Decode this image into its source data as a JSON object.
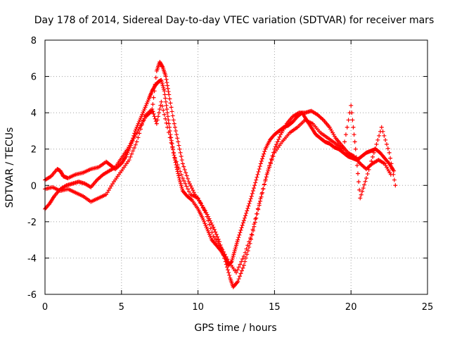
{
  "chart_data": {
    "type": "scatter",
    "title": "Day 178 of 2014, Sidereal Day-to-day VTEC variation (SDTVAR) for receiver mars",
    "xlabel": "GPS time / hours",
    "ylabel": "SDTVAR / TECUs",
    "xlim": [
      0,
      25
    ],
    "ylim": [
      -6,
      8
    ],
    "xticks": [
      0,
      5,
      10,
      15,
      20,
      25
    ],
    "yticks": [
      -6,
      -4,
      -2,
      0,
      2,
      4,
      6,
      8
    ],
    "grid": true,
    "legend": "none",
    "marker": "plus",
    "series": [
      {
        "name": "trace-1",
        "color": "#ff0000",
        "x": [
          0.0,
          0.4,
          0.8,
          1.0,
          1.2,
          1.5,
          2.0,
          2.5,
          3.0,
          3.5,
          4.0,
          4.3,
          4.6,
          5.0,
          5.3,
          5.6,
          5.9,
          6.2,
          6.5,
          6.8,
          7.0,
          7.2,
          7.4,
          7.6,
          7.8,
          8.0,
          8.2,
          8.4,
          8.6,
          8.8,
          9.0,
          9.3,
          9.6,
          10.0,
          10.3,
          10.6,
          10.9,
          11.2,
          11.5,
          11.8,
          12.0,
          12.2,
          12.4,
          12.6,
          12.9,
          13.2,
          13.5,
          13.8,
          14.1,
          14.4,
          14.7,
          15.0,
          15.3,
          15.6,
          15.9,
          16.2,
          16.5,
          16.8,
          17.1,
          17.4,
          17.7,
          18.0,
          18.3,
          18.6,
          18.9,
          19.2,
          19.5,
          19.8,
          20.1,
          20.4,
          20.7,
          21.0,
          21.3,
          21.6,
          21.9,
          22.2,
          22.5,
          22.8
        ],
        "y": [
          0.3,
          0.5,
          0.9,
          0.8,
          0.5,
          0.4,
          0.6,
          0.7,
          0.9,
          1.0,
          1.3,
          1.1,
          0.9,
          1.2,
          1.6,
          2.2,
          3.0,
          3.6,
          4.2,
          4.8,
          5.2,
          5.5,
          5.7,
          5.8,
          5.2,
          4.0,
          2.8,
          1.8,
          1.0,
          0.3,
          -0.3,
          -0.6,
          -0.8,
          -1.3,
          -1.8,
          -2.4,
          -3.0,
          -3.3,
          -3.6,
          -4.0,
          -4.4,
          -4.2,
          -3.6,
          -3.0,
          -2.2,
          -1.4,
          -0.6,
          0.3,
          1.2,
          2.0,
          2.5,
          2.8,
          3.0,
          3.2,
          3.3,
          3.5,
          3.8,
          4.0,
          3.6,
          3.2,
          2.8,
          2.6,
          2.4,
          2.3,
          2.1,
          2.0,
          1.8,
          1.6,
          1.5,
          1.4,
          1.6,
          1.8,
          1.9,
          2.0,
          1.8,
          1.5,
          1.2,
          0.8
        ]
      },
      {
        "name": "trace-2",
        "color": "#ff0000",
        "x": [
          0.0,
          0.3,
          0.6,
          1.0,
          1.4,
          1.8,
          2.2,
          2.6,
          3.0,
          3.4,
          3.8,
          4.2,
          4.6,
          5.0,
          5.4,
          5.8,
          6.2,
          6.6,
          7.0,
          7.3,
          7.5,
          7.7,
          7.9,
          8.1,
          8.4,
          8.7,
          9.0,
          9.4,
          9.8,
          10.2,
          10.6,
          11.0,
          11.4,
          11.8,
          12.1,
          12.3,
          12.6,
          13.0,
          13.4,
          13.8,
          14.2,
          14.6,
          15.0,
          15.4,
          15.8,
          16.2,
          16.6,
          17.0,
          17.4,
          17.8,
          18.2,
          18.6,
          19.0,
          19.4,
          19.8,
          20.2,
          20.6,
          21.0,
          21.4,
          21.8,
          22.2,
          22.6
        ],
        "y": [
          -1.3,
          -1.0,
          -0.6,
          -0.2,
          0.0,
          0.1,
          0.2,
          0.1,
          -0.1,
          0.3,
          0.6,
          0.8,
          1.0,
          1.5,
          2.0,
          2.6,
          3.2,
          3.8,
          4.1,
          6.3,
          6.8,
          6.5,
          6.0,
          5.0,
          3.6,
          2.4,
          1.2,
          0.2,
          -0.5,
          -1.0,
          -1.6,
          -2.3,
          -3.1,
          -4.2,
          -5.1,
          -5.6,
          -5.3,
          -4.4,
          -3.2,
          -1.8,
          -0.4,
          0.9,
          2.0,
          2.8,
          3.4,
          3.8,
          4.0,
          4.0,
          4.1,
          3.9,
          3.6,
          3.2,
          2.6,
          2.2,
          1.8,
          1.6,
          1.2,
          0.9,
          1.2,
          1.4,
          1.2,
          0.6
        ]
      },
      {
        "name": "trace-3",
        "color": "#ff0000",
        "x": [
          0.0,
          0.5,
          1.0,
          1.5,
          2.0,
          2.5,
          3.0,
          3.5,
          4.0,
          4.5,
          5.0,
          5.5,
          6.0,
          6.5,
          7.0,
          7.3,
          7.6,
          8.0,
          8.5,
          9.0,
          9.5,
          10.0,
          10.5,
          11.0,
          11.5,
          12.0,
          12.5,
          13.0,
          13.5,
          14.0,
          14.5,
          15.0,
          15.5,
          16.0,
          16.5,
          17.0,
          17.5,
          18.0,
          18.5,
          19.0,
          19.5,
          20.0,
          20.3,
          20.6,
          21.0,
          21.5,
          22.0,
          22.5,
          22.9
        ],
        "y": [
          -0.2,
          -0.1,
          -0.3,
          -0.2,
          -0.4,
          -0.6,
          -0.9,
          -0.7,
          -0.5,
          0.2,
          0.8,
          1.4,
          2.4,
          3.8,
          4.2,
          3.4,
          4.6,
          3.2,
          1.5,
          0.4,
          -0.5,
          -0.7,
          -1.5,
          -2.8,
          -3.4,
          -4.2,
          -4.8,
          -3.9,
          -2.7,
          -1.0,
          0.6,
          1.8,
          2.4,
          2.9,
          3.2,
          3.6,
          3.4,
          2.9,
          2.6,
          2.3,
          2.0,
          4.4,
          2.0,
          -0.7,
          0.4,
          1.8,
          3.2,
          1.8,
          0.0
        ]
      }
    ]
  }
}
